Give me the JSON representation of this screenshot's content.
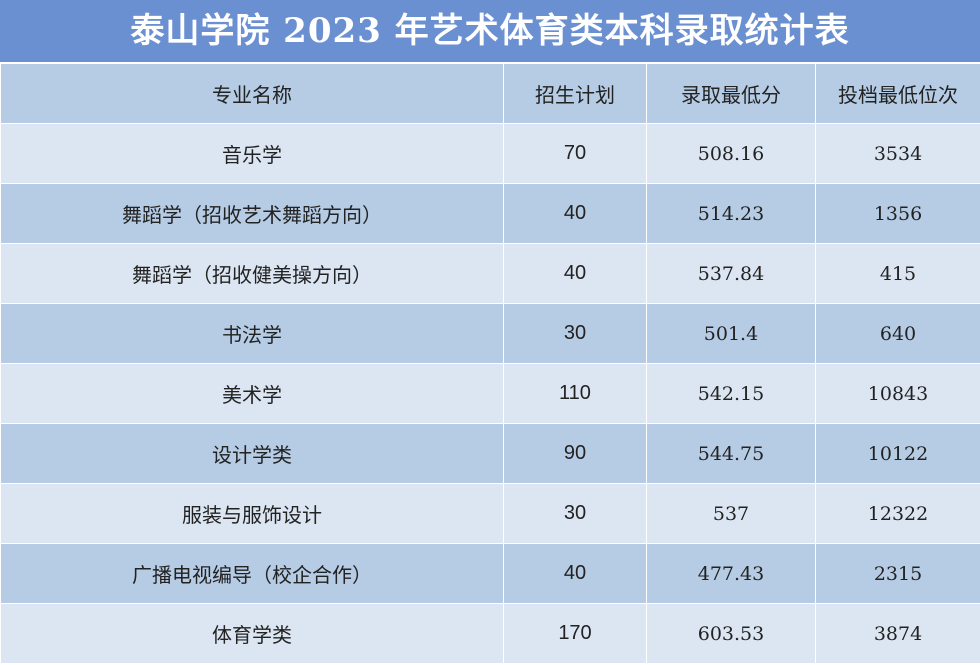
{
  "title": "泰山学院 2023 年艺术体育类本科录取统计表",
  "headers": [
    "专业名称",
    "招生计划",
    "录取最低分",
    "投档最低位次"
  ],
  "rows": [
    {
      "major": "音乐学",
      "plan": "70",
      "min_score": "508.16",
      "min_rank": "3534"
    },
    {
      "major": "舞蹈学（招收艺术舞蹈方向）",
      "plan": "40",
      "min_score": "514.23",
      "min_rank": "1356"
    },
    {
      "major": "舞蹈学（招收健美操方向）",
      "plan": "40",
      "min_score": "537.84",
      "min_rank": "415"
    },
    {
      "major": "书法学",
      "plan": "30",
      "min_score": "501.4",
      "min_rank": "640"
    },
    {
      "major": "美术学",
      "plan": "110",
      "min_score": "542.15",
      "min_rank": "10843"
    },
    {
      "major": "设计学类",
      "plan": "90",
      "min_score": "544.75",
      "min_rank": "10122"
    },
    {
      "major": "服装与服饰设计",
      "plan": "30",
      "min_score": "537",
      "min_rank": "12322"
    },
    {
      "major": "广播电视编导（校企合作）",
      "plan": "40",
      "min_score": "477.43",
      "min_rank": "2315"
    },
    {
      "major": "体育学类",
      "plan": "170",
      "min_score": "603.53",
      "min_rank": "3874"
    }
  ],
  "colors": {
    "title_bg": "#6b90d2",
    "header_bg": "#b6cce4",
    "row_light": "#dce6f2",
    "row_dark": "#b6cce4"
  }
}
